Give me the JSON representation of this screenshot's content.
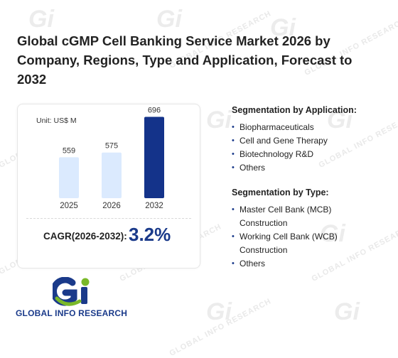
{
  "header": {
    "title": "Global cGMP Cell Banking Service Market 2026 by Company, Regions, Type and Application, Forecast to 2032"
  },
  "chart_data": {
    "type": "bar",
    "unit_label": "Unit: US$ M",
    "categories": [
      "2025",
      "2026",
      "2032"
    ],
    "values": [
      559,
      575,
      696
    ],
    "value_labels": [
      "559",
      "575",
      "696"
    ],
    "colors": [
      "#dbeafe",
      "#dbeafe",
      "#14338a"
    ],
    "ylim": [
      0,
      750
    ],
    "grid": false
  },
  "cagr": {
    "label": "CAGR(2026-2032):",
    "value": "3.2%"
  },
  "segments": {
    "application": {
      "heading": "Segmentation by Application:",
      "items": [
        "Biopharmaceuticals",
        "Cell and Gene Therapy",
        "Biotechnology R&D",
        "Others"
      ]
    },
    "type": {
      "heading": "Segmentation by Type:",
      "items": [
        "Master Cell Bank (MCB) Construction",
        "Working Cell Bank (WCB) Construction",
        "Others"
      ]
    }
  },
  "brand": {
    "logo_text": "GLOBAL INFO RESEARCH",
    "watermark_text": "GLOBAL INFO RESEARCH",
    "accent_color": "#1a3a8a",
    "logo_green": "#7ab929"
  }
}
